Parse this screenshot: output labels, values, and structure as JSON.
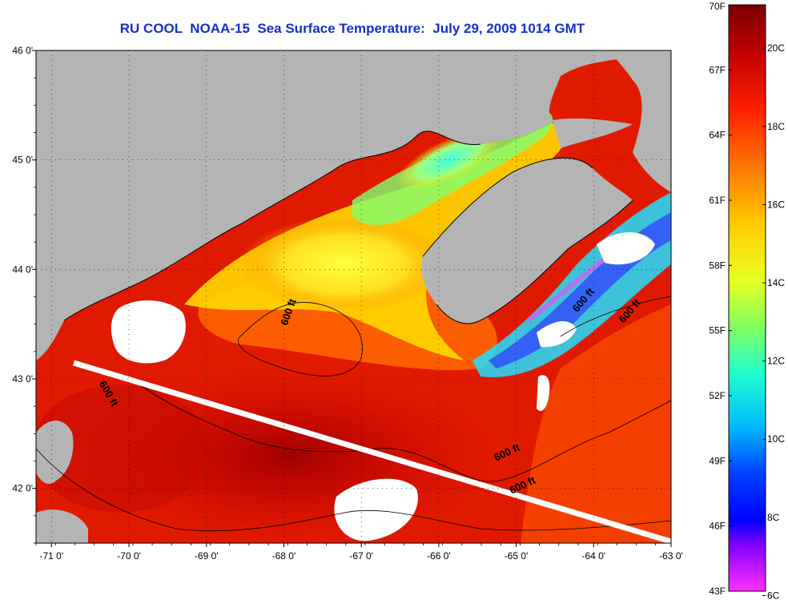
{
  "title": "RU COOL  NOAA-15  Sea Surface Temperature:  July 29, 2009 1014 GMT",
  "map": {
    "lon_range": [
      -71.2,
      -63
    ],
    "lat_range": [
      41.5,
      46
    ],
    "longitude_ticks": [
      -71,
      -70,
      -69,
      -68,
      -67,
      -66,
      -65,
      -64,
      -63
    ],
    "latitude_ticks": [
      42,
      43,
      44,
      45,
      46
    ],
    "longitude_tick_labels": [
      "-71 0'",
      "-70 0'",
      "-69 0'",
      "-68 0'",
      "-67 0'",
      "-66 0'",
      "-65 0'",
      "-64 0'",
      "-63 0'"
    ],
    "latitude_tick_labels": [
      "42 0'",
      "43 0'",
      "44 0'",
      "45 0'",
      "46 0'"
    ],
    "grid": "dotted",
    "land_color": "#b4b4b4",
    "cloud_color": "#ffffff",
    "contour_labels": [
      {
        "text": "600 ft",
        "lon": -67.9,
        "lat": 43.6,
        "angle": -70
      },
      {
        "text": "600 ft",
        "lon": -70.3,
        "lat": 42.85,
        "angle": 60
      },
      {
        "text": "600 ft",
        "lon": -64.1,
        "lat": 43.7,
        "angle": -50
      },
      {
        "text": "600 ft",
        "lon": -63.5,
        "lat": 43.6,
        "angle": -50
      },
      {
        "text": "600 ft",
        "lon": -65.1,
        "lat": 42.3,
        "angle": -25
      },
      {
        "text": "600 ft",
        "lon": -64.9,
        "lat": 42.0,
        "angle": -25
      }
    ]
  },
  "colorbar": {
    "fahrenheit_labels": [
      "70F",
      "67F",
      "64F",
      "61F",
      "58F",
      "55F",
      "52F",
      "49F",
      "46F",
      "43F"
    ],
    "celsius_labels": [
      "20C",
      "18C",
      "16C",
      "14C",
      "12C",
      "10C",
      "8C",
      "6C"
    ],
    "fahrenheit_range": [
      43,
      70
    ],
    "colors": [
      "#7a0000",
      "#c00000",
      "#ff2000",
      "#ff7a00",
      "#ffd000",
      "#e8ff20",
      "#80ff60",
      "#20ffd0",
      "#00b8ff",
      "#0040ff",
      "#0000ff",
      "#8000ff",
      "#ff30ff"
    ]
  }
}
